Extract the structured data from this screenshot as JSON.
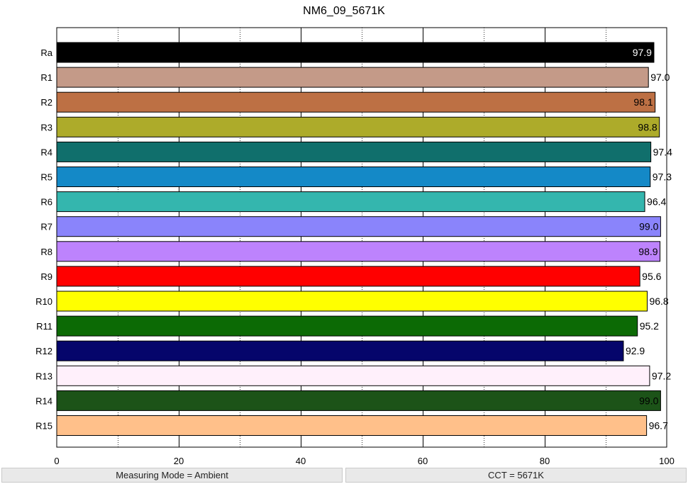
{
  "chart_data": {
    "type": "bar",
    "orientation": "horizontal",
    "title": "NM6_09_5671K",
    "xlabel": "",
    "ylabel": "",
    "xlim": [
      0,
      100
    ],
    "xticks": [
      0,
      20,
      40,
      60,
      80,
      100
    ],
    "grid": "vertical dotted minor lines every 10, solid every 20",
    "categories": [
      "Ra",
      "R1",
      "R2",
      "R3",
      "R4",
      "R5",
      "R6",
      "R7",
      "R8",
      "R9",
      "R10",
      "R11",
      "R12",
      "R13",
      "R14",
      "R15"
    ],
    "values": [
      97.9,
      97.0,
      98.1,
      98.8,
      97.4,
      97.3,
      96.4,
      99.0,
      98.9,
      95.6,
      96.8,
      95.2,
      92.9,
      97.2,
      99.0,
      96.7
    ],
    "value_labels": [
      "97.9",
      "97.0",
      "98.1",
      "98.8",
      "97.4",
      "97.3",
      "96.4",
      "99.0",
      "98.9",
      "95.6",
      "96.8",
      "95.2",
      "92.9",
      "97.2",
      "99.0",
      "96.7"
    ],
    "colors": [
      "#000000",
      "#c49a88",
      "#bd7044",
      "#adab2a",
      "#106f6c",
      "#1489c7",
      "#34b6ae",
      "#8a84fb",
      "#bd83fd",
      "#ff0000",
      "#ffff00",
      "#0c6a05",
      "#05056b",
      "#fff0fb",
      "#1c5318",
      "#ffc08a"
    ],
    "label_colors": [
      "#ffffff",
      "#000000",
      "#000000",
      "#000000",
      "#000000",
      "#000000",
      "#000000",
      "#000000",
      "#000000",
      "#000000",
      "#000000",
      "#000000",
      "#000000",
      "#000000",
      "#000000",
      "#000000"
    ]
  },
  "footer": {
    "left": "Measuring Mode = Ambient",
    "right": "CCT = 5671K"
  }
}
